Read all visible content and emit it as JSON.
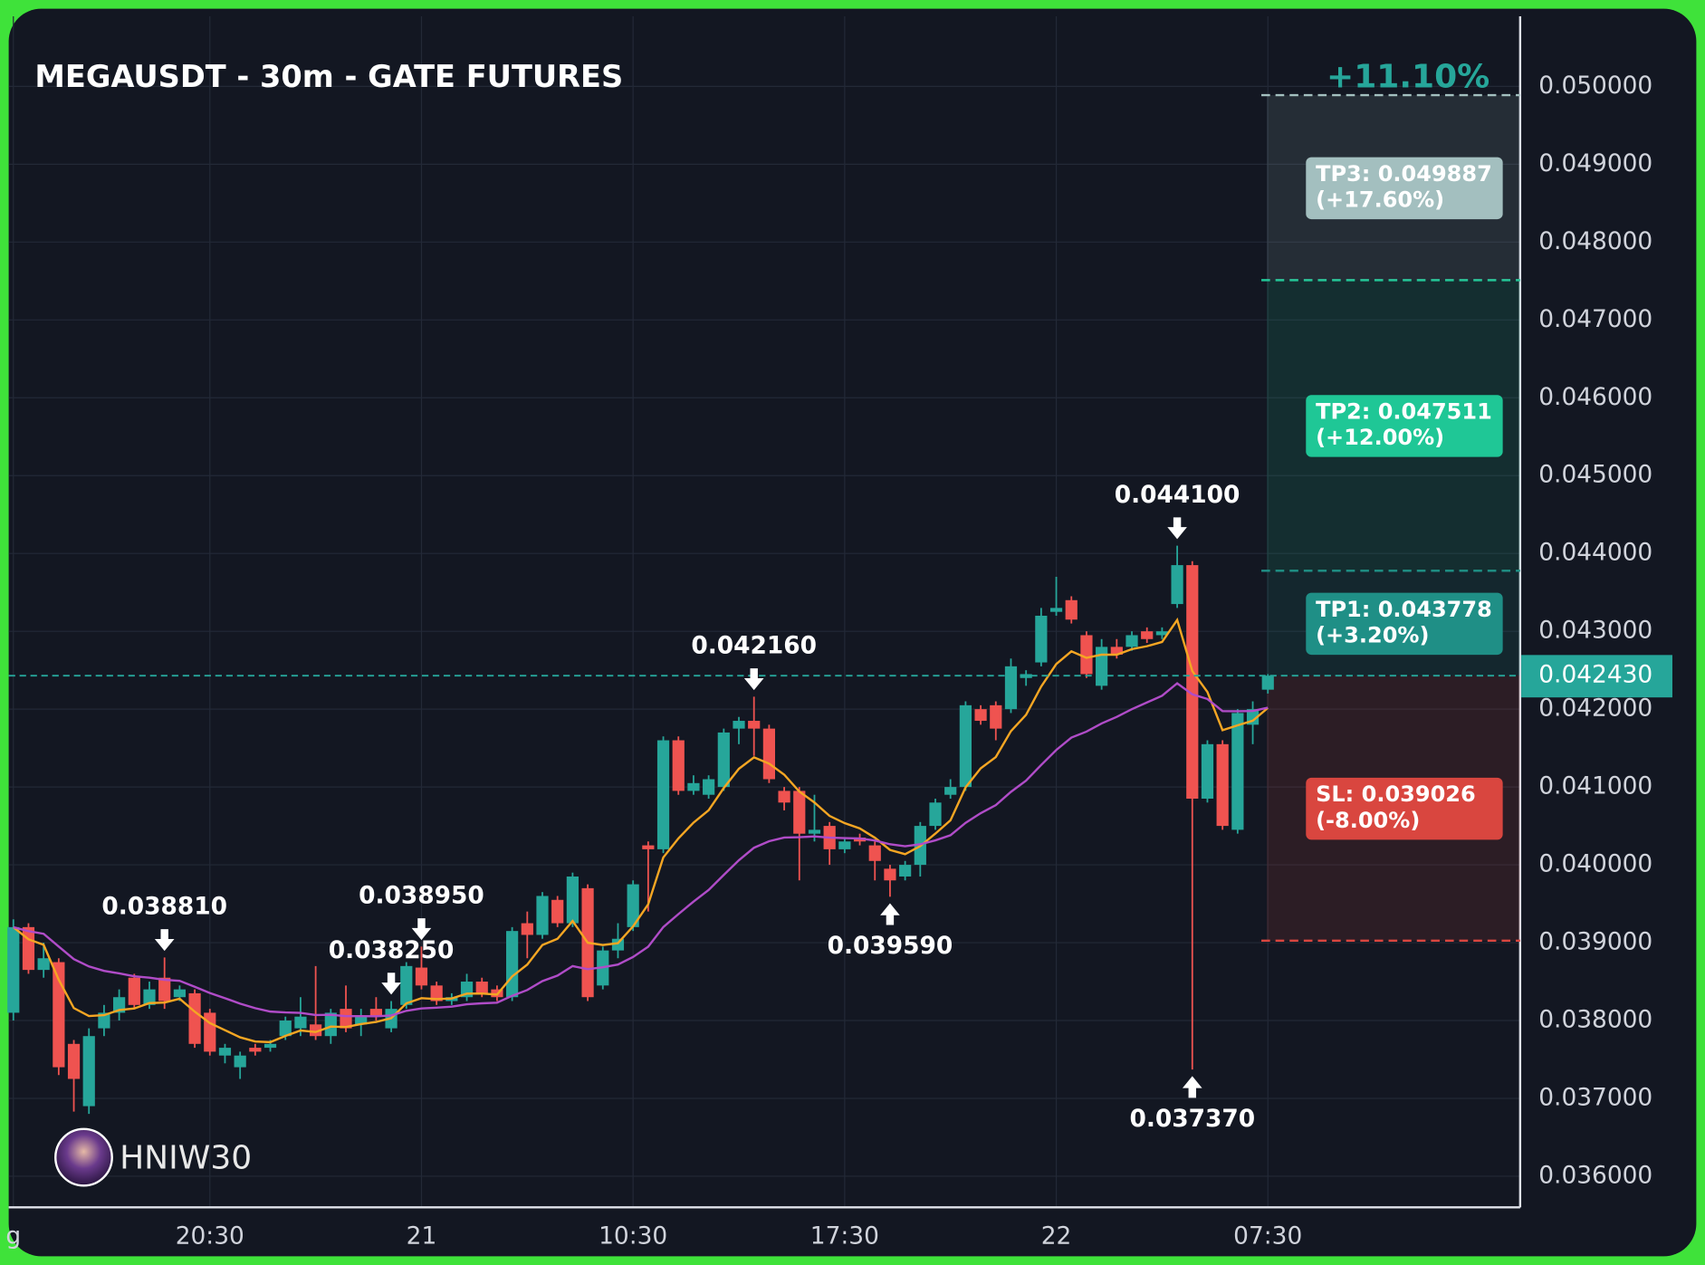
{
  "chart_data": {
    "type": "candlestick",
    "title": "MEGAUSDT - 30m - GATE FUTURES",
    "change": "+11.10%",
    "watermark": "HNIW30",
    "up_color": "#26a69a",
    "down_color": "#ef5350",
    "ma_colors": [
      "#f5a623",
      "#b04cc8"
    ],
    "grid": true,
    "categories": [
      "g",
      null,
      null,
      null,
      null,
      null,
      null,
      null,
      null,
      null,
      null,
      null,
      null,
      "20:30",
      null,
      null,
      null,
      null,
      null,
      null,
      null,
      null,
      null,
      null,
      null,
      null,
      null,
      "21",
      null,
      null,
      null,
      null,
      null,
      null,
      null,
      null,
      null,
      null,
      null,
      null,
      null,
      "10:30",
      null,
      null,
      null,
      null,
      null,
      null,
      null,
      null,
      null,
      null,
      null,
      null,
      null,
      "17:30",
      null,
      null,
      null,
      null,
      null,
      null,
      null,
      null,
      null,
      null,
      null,
      null,
      null,
      "22",
      null,
      null,
      null,
      null,
      null,
      null,
      null,
      null,
      null,
      null,
      null,
      null,
      null,
      "07:30"
    ],
    "open": [
      0.0381,
      0.0392,
      0.03865,
      0.03875,
      0.0377,
      0.0369,
      0.0379,
      0.0381,
      0.03855,
      0.0382,
      0.03855,
      0.0383,
      0.03835,
      0.0381,
      0.03755,
      0.0374,
      0.03765,
      0.03765,
      0.0378,
      0.0379,
      0.03795,
      0.0378,
      0.03815,
      0.03795,
      0.03815,
      0.0379,
      0.0382,
      0.03868,
      0.03845,
      0.03825,
      0.0383,
      0.0385,
      0.0384,
      0.0383,
      0.03925,
      0.0391,
      0.03955,
      0.03925,
      0.0397,
      0.03845,
      0.0389,
      0.0392,
      0.04025,
      0.0402,
      0.0416,
      0.04095,
      0.0409,
      0.041,
      0.04175,
      0.04185,
      0.04175,
      0.04095,
      0.04095,
      0.0404,
      0.0405,
      0.0402,
      0.04035,
      0.04025,
      0.03995,
      0.03985,
      0.04,
      0.0405,
      0.0409,
      0.041,
      0.042,
      0.04205,
      0.042,
      0.0424,
      0.0426,
      0.04325,
      0.0434,
      0.04295,
      0.0423,
      0.0428,
      0.0428,
      0.043,
      0.04295,
      0.04335,
      0.04385,
      0.04085,
      0.04155,
      0.04045,
      0.0418,
      0.04225
    ],
    "high": [
      0.0393,
      0.03925,
      0.039,
      0.0388,
      0.03775,
      0.0379,
      0.0382,
      0.0384,
      0.0386,
      0.0385,
      0.03881,
      0.03845,
      0.0384,
      0.03815,
      0.0377,
      0.0376,
      0.0377,
      0.03775,
      0.03805,
      0.0383,
      0.0387,
      0.03815,
      0.03845,
      0.03815,
      0.0383,
      0.03825,
      0.03875,
      0.03895,
      0.0385,
      0.03835,
      0.0386,
      0.03855,
      0.03845,
      0.0392,
      0.0394,
      0.03965,
      0.0396,
      0.0399,
      0.03975,
      0.03895,
      0.03925,
      0.0398,
      0.0403,
      0.04165,
      0.04165,
      0.04115,
      0.04115,
      0.04175,
      0.0419,
      0.04216,
      0.0418,
      0.041,
      0.041,
      0.0409,
      0.04055,
      0.04035,
      0.0404,
      0.0403,
      0.04,
      0.04005,
      0.04055,
      0.04085,
      0.0411,
      0.0421,
      0.04205,
      0.0421,
      0.04265,
      0.0425,
      0.0433,
      0.0437,
      0.04345,
      0.043,
      0.0429,
      0.0429,
      0.043,
      0.04305,
      0.04305,
      0.0441,
      0.0439,
      0.0416,
      0.0416,
      0.042,
      0.0421,
      0.04245
    ],
    "low": [
      0.038,
      0.0386,
      0.03855,
      0.0373,
      0.03683,
      0.0368,
      0.0378,
      0.038,
      0.03815,
      0.03815,
      0.03815,
      0.03825,
      0.03765,
      0.03755,
      0.03745,
      0.03725,
      0.03755,
      0.0376,
      0.03775,
      0.0378,
      0.03775,
      0.0377,
      0.03785,
      0.0378,
      0.038,
      0.03785,
      0.03815,
      0.0384,
      0.0382,
      0.0382,
      0.03825,
      0.0383,
      0.03825,
      0.03825,
      0.0388,
      0.03905,
      0.0392,
      0.0392,
      0.03825,
      0.0384,
      0.0388,
      0.03915,
      0.0394,
      0.04015,
      0.0409,
      0.0409,
      0.04085,
      0.04095,
      0.04155,
      0.0414,
      0.04105,
      0.0407,
      0.0398,
      0.0403,
      0.04,
      0.04015,
      0.04025,
      0.0398,
      0.03959,
      0.0398,
      0.03985,
      0.04045,
      0.04085,
      0.04095,
      0.0418,
      0.0416,
      0.04195,
      0.0423,
      0.04255,
      0.0432,
      0.0431,
      0.0424,
      0.04225,
      0.04265,
      0.04275,
      0.04285,
      0.0429,
      0.0433,
      0.03737,
      0.0408,
      0.04045,
      0.0404,
      0.04155,
      0.0422
    ],
    "close": [
      0.0392,
      0.03865,
      0.0388,
      0.0374,
      0.03725,
      0.0378,
      0.0381,
      0.0383,
      0.0382,
      0.0384,
      0.03825,
      0.0384,
      0.0377,
      0.0376,
      0.03765,
      0.03755,
      0.0376,
      0.0377,
      0.038,
      0.03805,
      0.0378,
      0.0381,
      0.0379,
      0.03805,
      0.03805,
      0.03815,
      0.0387,
      0.03845,
      0.03825,
      0.0383,
      0.0385,
      0.03835,
      0.0383,
      0.03915,
      0.0391,
      0.0396,
      0.03925,
      0.03985,
      0.0383,
      0.0389,
      0.03905,
      0.03975,
      0.0402,
      0.0416,
      0.04095,
      0.04105,
      0.0411,
      0.0417,
      0.04185,
      0.04175,
      0.0411,
      0.0408,
      0.0404,
      0.04045,
      0.0402,
      0.0403,
      0.0403,
      0.04005,
      0.0398,
      0.04,
      0.0405,
      0.0408,
      0.041,
      0.04205,
      0.04185,
      0.04175,
      0.04255,
      0.04245,
      0.0432,
      0.0433,
      0.04315,
      0.04245,
      0.0428,
      0.0427,
      0.04295,
      0.0429,
      0.043,
      0.04385,
      0.04085,
      0.04155,
      0.0405,
      0.04195,
      0.042,
      0.04243
    ],
    "annotations": [
      "0.038810",
      "0.038950",
      "0.038250",
      "0.042160",
      "0.039590",
      "0.044100",
      "0.037370"
    ],
    "last_price": {
      "value": 0.04243,
      "label": "0.042430",
      "color": "#26a69a"
    },
    "levels": [
      {
        "name": "TP1: 0.043778",
        "note": "(+3.20%)",
        "value": 0.043778,
        "color": "#1f8f86"
      },
      {
        "name": "TP2: 0.047511",
        "note": "(+12.00%)",
        "value": 0.047511,
        "color": "#1fc796"
      },
      {
        "name": "TP3: 0.049887",
        "note": "(+17.60%)",
        "value": 0.049887,
        "color": "#a3bfbf"
      },
      {
        "name": "SL: 0.039026",
        "note": "(-8.00%)",
        "value": 0.039026,
        "color": "#d9463f"
      }
    ],
    "ylim": [
      0.0356,
      0.0509
    ],
    "yticks": [
      {
        "value": 0.036,
        "label": "0.036000"
      },
      {
        "value": 0.037,
        "label": "0.037000"
      },
      {
        "value": 0.038,
        "label": "0.038000"
      },
      {
        "value": 0.039,
        "label": "0.039000"
      },
      {
        "value": 0.04,
        "label": "0.040000"
      },
      {
        "value": 0.041,
        "label": "0.041000"
      },
      {
        "value": 0.042,
        "label": "0.042000"
      },
      {
        "value": 0.043,
        "label": "0.043000"
      },
      {
        "value": 0.044,
        "label": "0.044000"
      },
      {
        "value": 0.045,
        "label": "0.045000"
      },
      {
        "value": 0.046,
        "label": "0.046000"
      },
      {
        "value": 0.047,
        "label": "0.047000"
      },
      {
        "value": 0.048,
        "label": "0.048000"
      },
      {
        "value": 0.049,
        "label": "0.049000"
      },
      {
        "value": 0.05,
        "label": "0.050000"
      }
    ]
  }
}
